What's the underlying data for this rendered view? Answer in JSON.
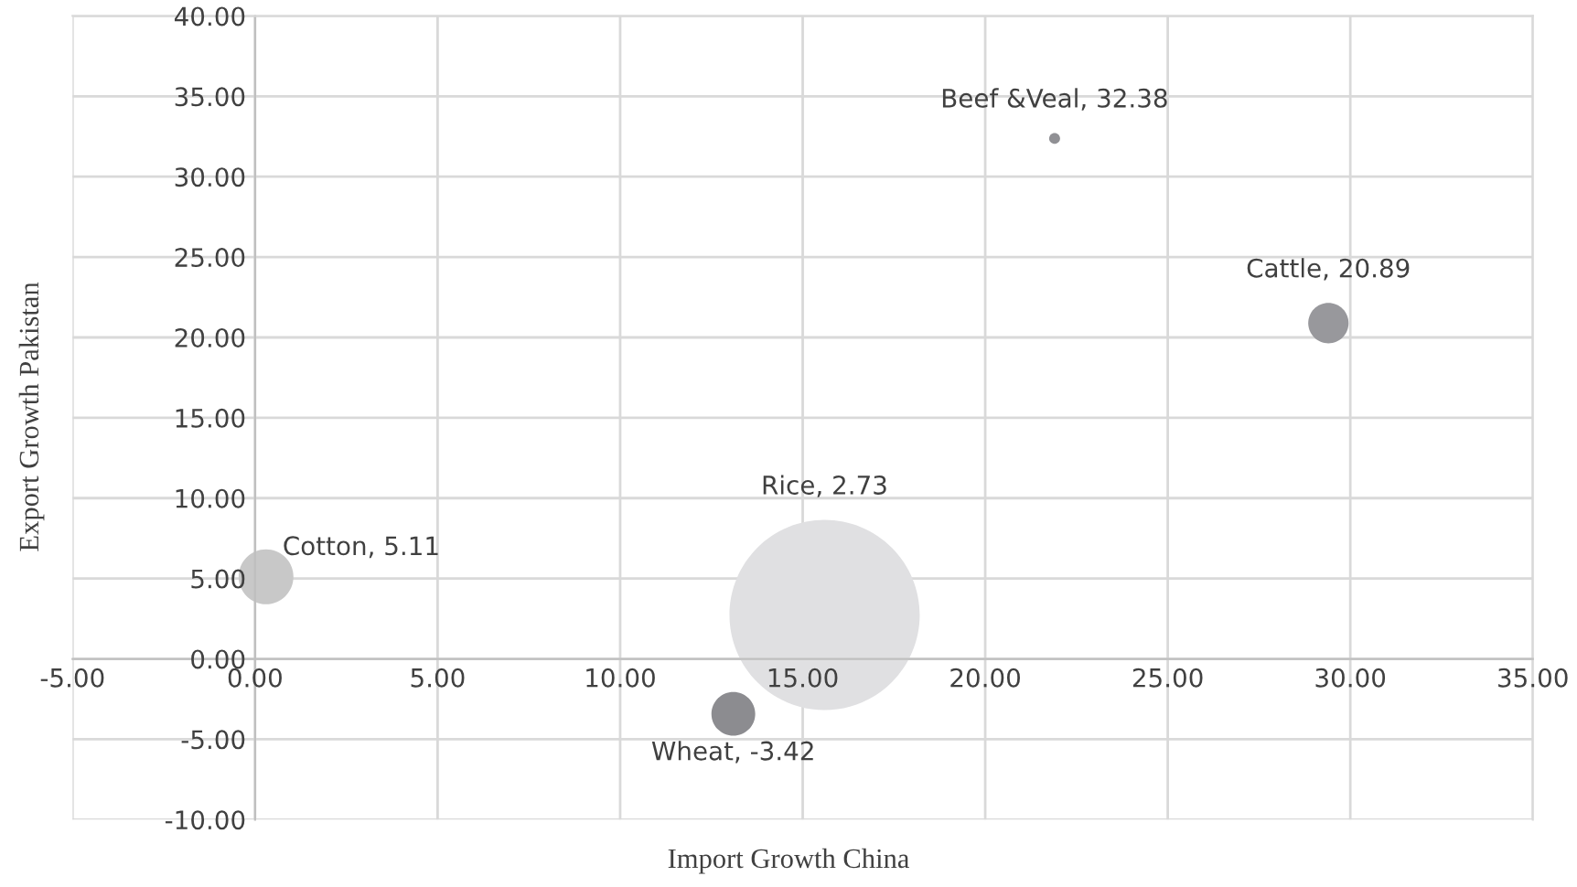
{
  "chart_data": {
    "type": "bubble",
    "xlabel": "Import Growth China",
    "ylabel": "Export Growth Pakistan",
    "x": [
      0.3,
      15.6,
      13.1,
      21.9,
      29.4
    ],
    "values": [
      5.11,
      2.73,
      -3.42,
      32.38,
      20.89
    ],
    "sizes": [
      0.083,
      1,
      0.053,
      0.0033,
      0.045
    ],
    "colors": [
      "#c8c8c8",
      "#e0e0e2",
      "#8c8c90",
      "#909094",
      "#98989c"
    ],
    "value_labels": [
      "Cotton, 5.11",
      "Rice, 2.73",
      "Wheat, -3.42",
      "Beef &Veal, 32.38",
      "Cattle, 20.89"
    ],
    "xlim": [
      -5,
      35
    ],
    "xticks": [
      {
        "value": -5,
        "label": "-5.00"
      },
      {
        "value": 0,
        "label": "0.00"
      },
      {
        "value": 5,
        "label": "5.00"
      },
      {
        "value": 10,
        "label": "10.00"
      },
      {
        "value": 15,
        "label": "15.00"
      },
      {
        "value": 20,
        "label": "20.00"
      },
      {
        "value": 25,
        "label": "25.00"
      },
      {
        "value": 30,
        "label": "30.00"
      },
      {
        "value": 35,
        "label": "35.00"
      }
    ],
    "ylim": [
      -10,
      40
    ],
    "yticks": [
      {
        "value": -10,
        "label": "-10.00"
      },
      {
        "value": -5,
        "label": "-5.00"
      },
      {
        "value": 0,
        "label": "0.00"
      },
      {
        "value": 5,
        "label": "5.00"
      },
      {
        "value": 10,
        "label": "10.00"
      },
      {
        "value": 15,
        "label": "15.00"
      },
      {
        "value": 20,
        "label": "20.00"
      },
      {
        "value": 25,
        "label": "25.00"
      },
      {
        "value": 30,
        "label": "30.00"
      },
      {
        "value": 35,
        "label": "35.00"
      },
      {
        "value": 40,
        "label": "40.00"
      }
    ],
    "grid": true
  }
}
